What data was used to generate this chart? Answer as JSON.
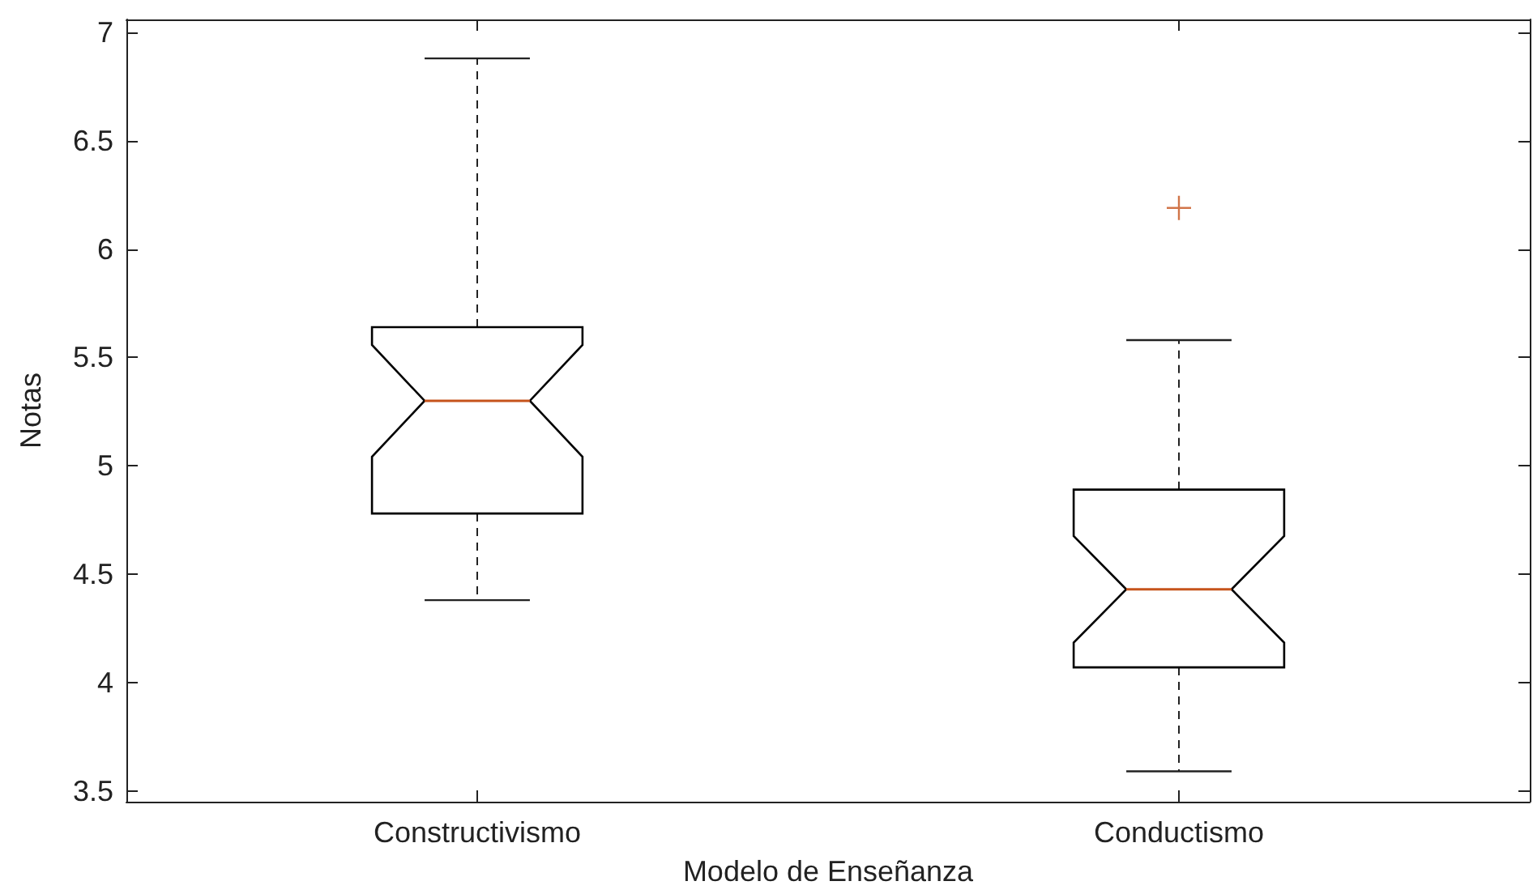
{
  "chart_data": {
    "type": "box",
    "xlabel": "Modelo de Enseñanza",
    "ylabel": "Notas",
    "categories": [
      "Constructivismo",
      "Conductismo"
    ],
    "boxes": [
      {
        "low": 4.38,
        "q1": 4.78,
        "median": 5.3,
        "q3": 5.64,
        "high": 6.88
      },
      {
        "low": 3.59,
        "q1": 4.07,
        "median": 4.43,
        "q3": 4.89,
        "high": 5.58,
        "outliers": [
          6.19
        ]
      }
    ],
    "color": "#000000",
    "ylim": [
      3.45,
      7.06
    ],
    "yticks": [
      3.5,
      4,
      4.5,
      5,
      5.5,
      6,
      6.5,
      7
    ],
    "grid": false
  }
}
